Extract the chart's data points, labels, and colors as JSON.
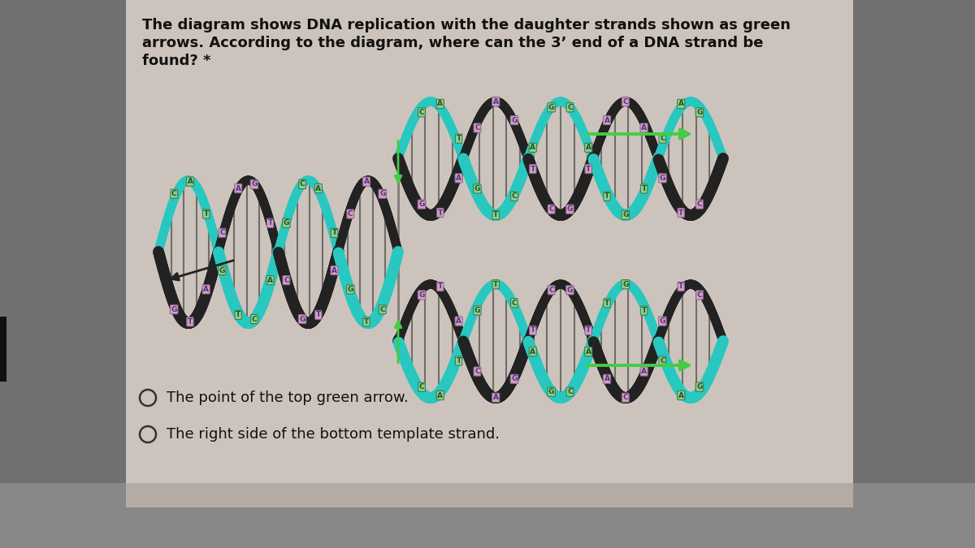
{
  "bg_outer": "#7a7a7a",
  "bg_panel": "#ccc4bc",
  "bg_bottom": "#b4aca4",
  "title_lines": [
    "The diagram shows DNA replication with the daughter strands shown as green",
    "arrows. According to the diagram, where can the 3’ end of a DNA strand be",
    "found? *"
  ],
  "option1": "The point of the top green arrow.",
  "option2": "The right side of the bottom template strand.",
  "title_fontsize": 13,
  "option_fontsize": 13,
  "teal": "#28c8c0",
  "dark_strand": "#222222",
  "green_arrow": "#44cc44",
  "nuc_pink_bg": "#e8b0c8",
  "nuc_green_bg": "#98d898",
  "nuc_letter_dark": "#444488",
  "nuc_letter_green": "#336633"
}
